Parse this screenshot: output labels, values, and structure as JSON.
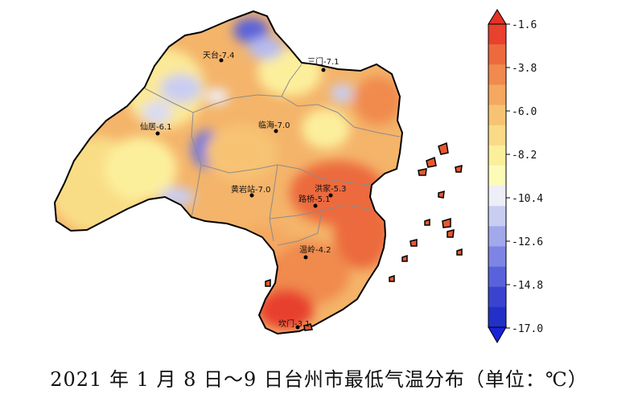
{
  "caption": "2021 年 1 月 8 日～9 日台州市最低气温分布（单位：℃）",
  "unit": "℃",
  "stations": [
    {
      "name": "天台",
      "value": "-7.4",
      "label": "天台-7.4"
    },
    {
      "name": "三门",
      "value": "-7.1",
      "label": "三门-7.1"
    },
    {
      "name": "仙居",
      "value": "-6.1",
      "label": "仙居-6.1"
    },
    {
      "name": "临海",
      "value": "-7.0",
      "label": "临海-7.0"
    },
    {
      "name": "黄岩站",
      "value": "-7.0",
      "label": "黄岩站-7.0"
    },
    {
      "name": "洪家",
      "value": "-5.3",
      "label": "洪家-5.3"
    },
    {
      "name": "路桥",
      "value": "-5.1",
      "label": "路桥-5.1"
    },
    {
      "name": "温岭",
      "value": "-4.2",
      "label": "温岭-4.2"
    },
    {
      "name": "坎门",
      "value": "-3.1",
      "label": "坎门-3.1"
    }
  ],
  "colorbar": {
    "ticks": [
      "-1.6",
      "-3.8",
      "-6.0",
      "-8.2",
      "-10.4",
      "-12.6",
      "-14.8",
      "-17.0"
    ],
    "colors": [
      "#e8412d",
      "#ec6a3e",
      "#f08a4e",
      "#f4a860",
      "#f7c373",
      "#f9da86",
      "#fcef9c",
      "#fdfbb8",
      "#eeeef8",
      "#c9cdf2",
      "#a2a8ec",
      "#7d84e4",
      "#5a62db",
      "#3a43d0",
      "#2230c8"
    ]
  },
  "colors": {
    "warm": "#e8412d",
    "mid": "#f4a860",
    "pale": "#fcef9c",
    "cold": "#5a62db"
  }
}
